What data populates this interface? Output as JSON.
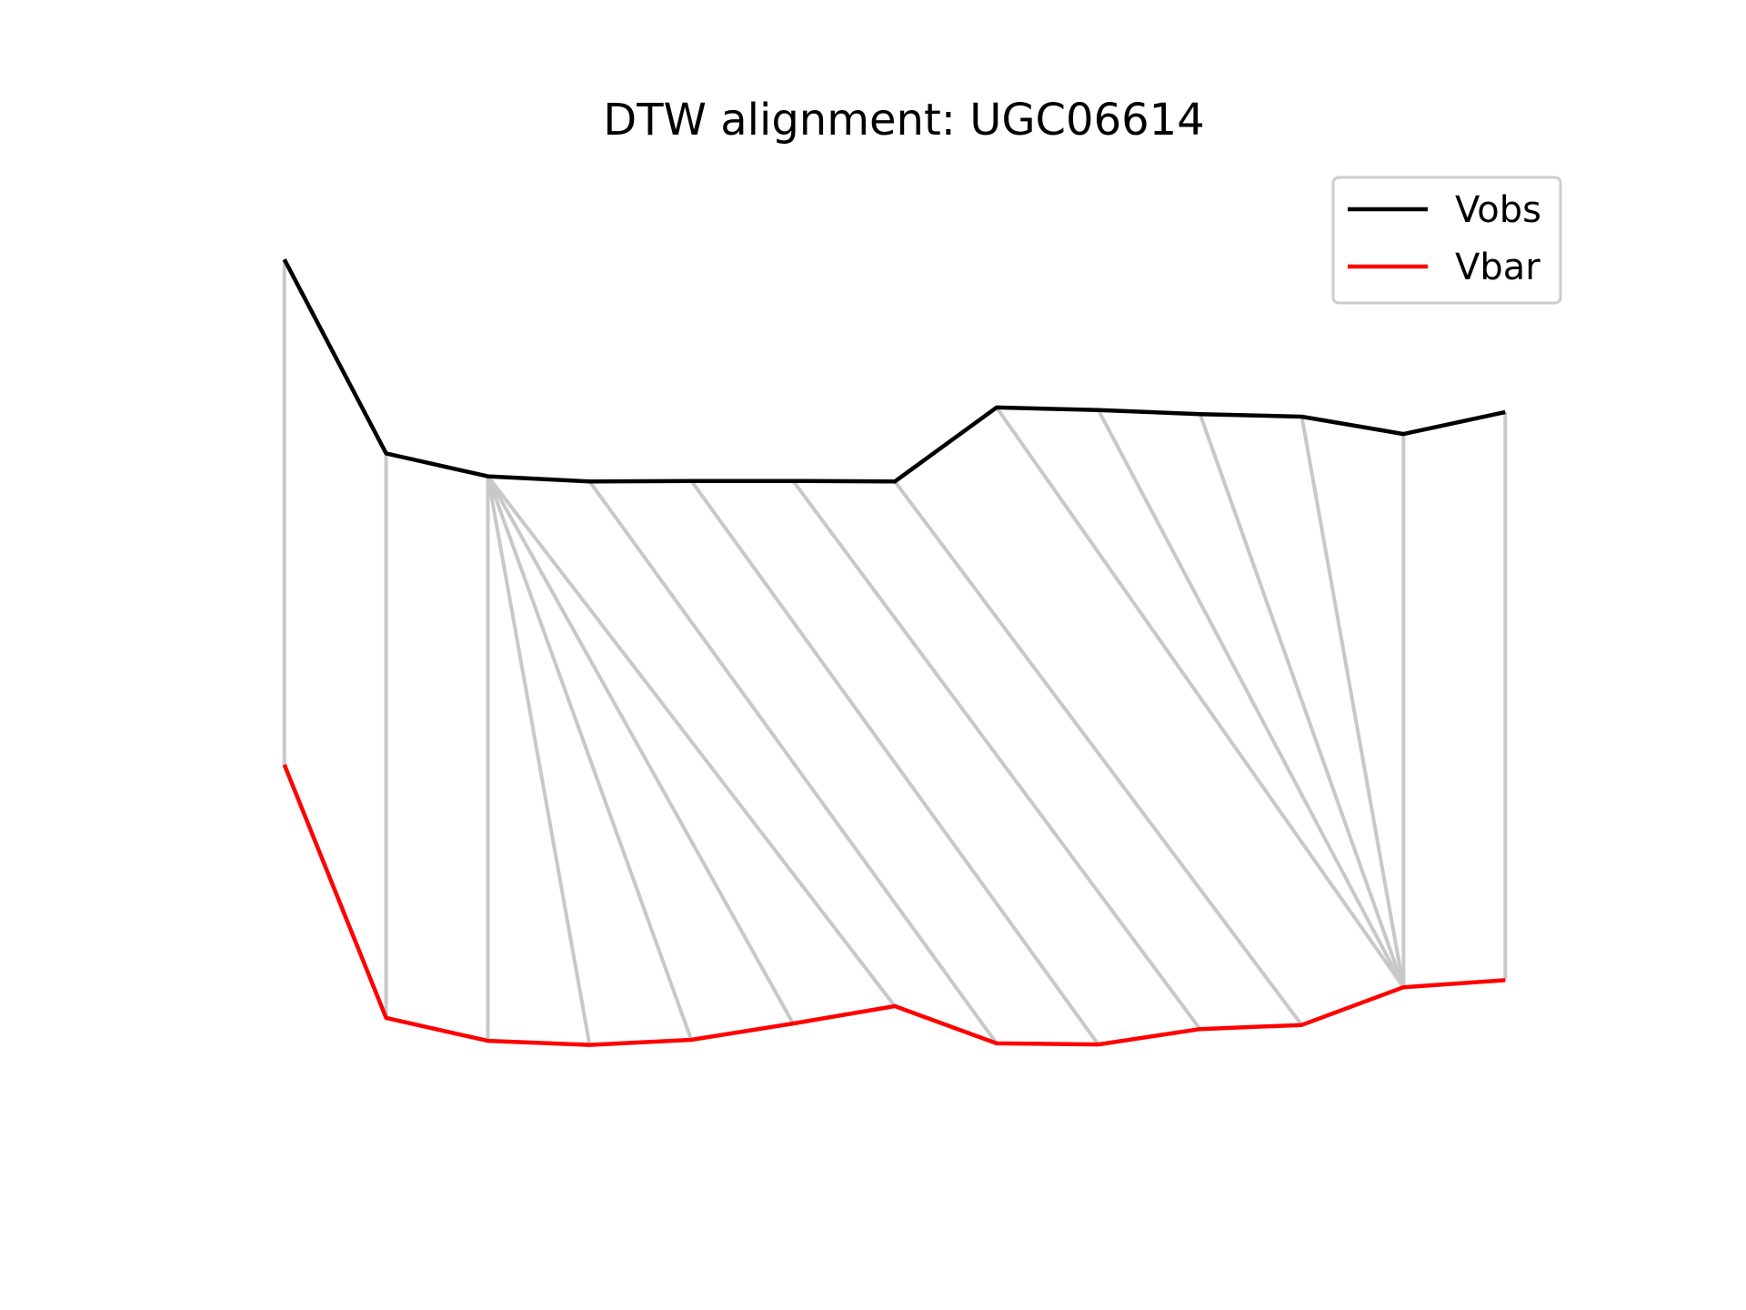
{
  "chart_data": {
    "type": "line",
    "title": "DTW alignment: UGC06614",
    "xlabel": "",
    "ylabel": "",
    "axes_visible": false,
    "grid": false,
    "legend_position": "top-right",
    "xlim": [
      -0.65,
      12.65
    ],
    "ylim": [
      -0.95,
      1.0
    ],
    "series": [
      {
        "name": "Vobs",
        "color": "#000000",
        "x": [
          0,
          1,
          2,
          3,
          4,
          5,
          6,
          7,
          8,
          9,
          10,
          11,
          12
        ],
        "y": [
          0.8,
          0.42,
          0.375,
          0.365,
          0.366,
          0.366,
          0.365,
          0.51,
          0.505,
          0.497,
          0.492,
          0.458,
          0.501
        ]
      },
      {
        "name": "Vbar",
        "color": "#ff0000",
        "x": [
          0,
          1,
          2,
          3,
          4,
          5,
          6,
          7,
          8,
          9,
          10,
          11,
          12
        ],
        "y": [
          -0.19,
          -0.686,
          -0.731,
          -0.739,
          -0.729,
          -0.697,
          -0.663,
          -0.736,
          -0.738,
          -0.708,
          -0.7,
          -0.626,
          -0.612
        ]
      }
    ],
    "alignment": {
      "color": "#c8c8c8",
      "pairs": [
        [
          0,
          0
        ],
        [
          1,
          1
        ],
        [
          2,
          2
        ],
        [
          2,
          3
        ],
        [
          2,
          4
        ],
        [
          2,
          5
        ],
        [
          2,
          6
        ],
        [
          3,
          7
        ],
        [
          4,
          8
        ],
        [
          5,
          9
        ],
        [
          6,
          10
        ],
        [
          7,
          11
        ],
        [
          8,
          11
        ],
        [
          9,
          11
        ],
        [
          10,
          11
        ],
        [
          11,
          11
        ],
        [
          12,
          12
        ]
      ]
    }
  }
}
